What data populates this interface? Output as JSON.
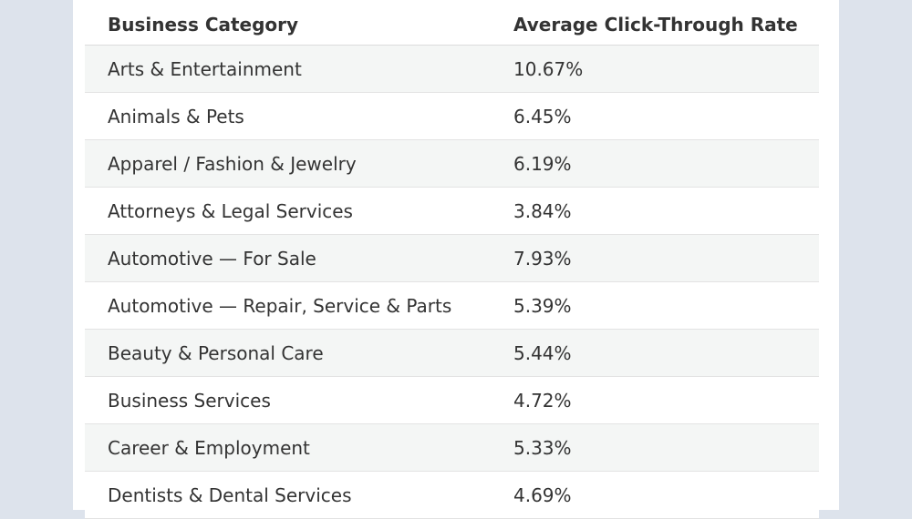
{
  "table": {
    "headers": {
      "category": "Business Category",
      "rate": "Average Click-Through Rate"
    },
    "rows": [
      {
        "category": "Arts & Entertainment",
        "rate": "10.67%"
      },
      {
        "category": "Animals & Pets",
        "rate": "6.45%"
      },
      {
        "category": "Apparel / Fashion & Jewelry",
        "rate": "6.19%"
      },
      {
        "category": "Attorneys & Legal Services",
        "rate": "3.84%"
      },
      {
        "category": "Automotive — For Sale",
        "rate": "7.93%"
      },
      {
        "category": "Automotive — Repair, Service & Parts",
        "rate": "5.39%"
      },
      {
        "category": "Beauty & Personal Care",
        "rate": "5.44%"
      },
      {
        "category": "Business Services",
        "rate": "4.72%"
      },
      {
        "category": "Career & Employment",
        "rate": "5.33%"
      },
      {
        "category": "Dentists & Dental Services",
        "rate": "4.69%"
      }
    ]
  },
  "colors": {
    "page_background": "#dde3ec",
    "stripe": "#f4f6f5",
    "text": "#333333"
  }
}
